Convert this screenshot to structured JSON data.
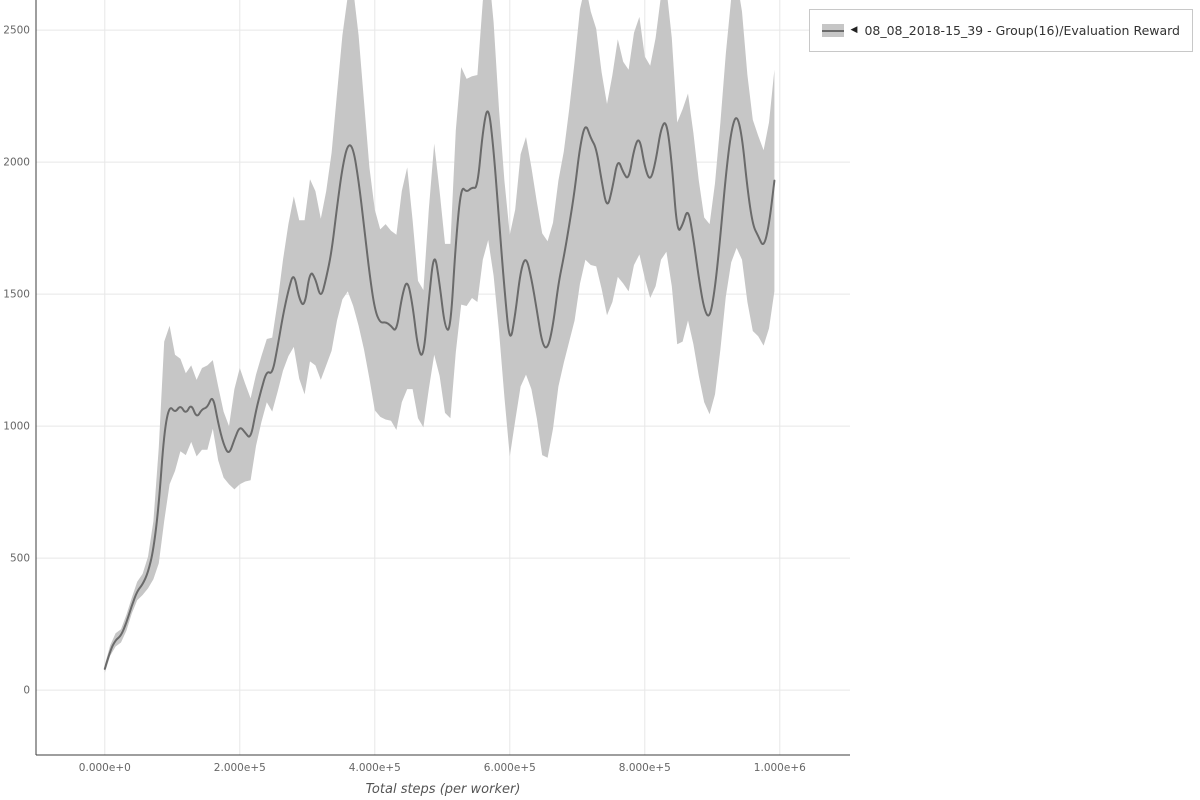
{
  "legend": {
    "toggle_icon": "◀",
    "label": "08_08_2018-15_39 - Group(16)/Evaluation Reward"
  },
  "chart_data": {
    "type": "line",
    "title": "",
    "xlabel": "Total steps (per worker)",
    "ylabel": "",
    "grid": true,
    "legend_position": "top-right",
    "xlim": [
      -102000,
      1104000
    ],
    "ylim": [
      -246,
      2614
    ],
    "x_ticks": {
      "values": [
        0,
        200000,
        400000,
        600000,
        800000,
        1000000
      ],
      "labels": [
        "0.000e+0",
        "2.000e+5",
        "4.000e+5",
        "6.000e+5",
        "8.000e+5",
        "1.000e+6"
      ]
    },
    "y_ticks": {
      "values": [
        0,
        500,
        1000,
        1500,
        2000,
        2500
      ],
      "labels": [
        "0",
        "500",
        "1000",
        "1500",
        "2000",
        "2500"
      ]
    },
    "colors": {
      "line": "#6a6a6a",
      "band": "#c6c6c6",
      "grid": "#e7e7e7",
      "axis": "#3c3c3c",
      "tick_text": "#666666",
      "title_text": "#555555"
    },
    "series": [
      {
        "name": "08_08_2018-15_39 - Group(16)/Evaluation Reward",
        "band_meaning": "mean ± spread (shaded region around line)",
        "x_start": 0,
        "x_step": 8000,
        "mean": [
          80,
          150,
          190,
          205,
          255,
          320,
          375,
          400,
          445,
          530,
          700,
          980,
          1080,
          1050,
          1080,
          1045,
          1085,
          1030,
          1065,
          1070,
          1120,
          1010,
          930,
          890,
          950,
          1000,
          975,
          950,
          1060,
          1140,
          1210,
          1195,
          1300,
          1420,
          1515,
          1585,
          1480,
          1450,
          1590,
          1560,
          1480,
          1560,
          1660,
          1830,
          1980,
          2070,
          2055,
          1930,
          1760,
          1580,
          1440,
          1390,
          1395,
          1380,
          1355,
          1490,
          1560,
          1460,
          1290,
          1255,
          1480,
          1670,
          1540,
          1370,
          1360,
          1700,
          1910,
          1885,
          1905,
          1900,
          2120,
          2225,
          2050,
          1780,
          1520,
          1305,
          1420,
          1590,
          1645,
          1560,
          1440,
          1310,
          1290,
          1380,
          1540,
          1640,
          1760,
          1890,
          2060,
          2150,
          2090,
          2055,
          1930,
          1820,
          1900,
          2015,
          1960,
          1930,
          2050,
          2100,
          1980,
          1925,
          2000,
          2130,
          2160,
          2000,
          1730,
          1760,
          1830,
          1710,
          1560,
          1440,
          1405,
          1520,
          1720,
          1950,
          2120,
          2185,
          2100,
          1900,
          1760,
          1720,
          1675,
          1760,
          1930
        ],
        "spread": [
          15,
          20,
          25,
          25,
          30,
          30,
          35,
          40,
          60,
          110,
          220,
          340,
          300,
          220,
          175,
          155,
          145,
          145,
          155,
          160,
          130,
          140,
          125,
          110,
          190,
          220,
          185,
          155,
          135,
          125,
          120,
          140,
          170,
          210,
          250,
          285,
          300,
          330,
          345,
          330,
          305,
          330,
          375,
          430,
          500,
          560,
          600,
          550,
          470,
          400,
          380,
          355,
          370,
          360,
          370,
          400,
          420,
          320,
          260,
          260,
          340,
          400,
          350,
          320,
          330,
          420,
          450,
          430,
          420,
          430,
          490,
          520,
          480,
          420,
          410,
          420,
          400,
          440,
          450,
          420,
          410,
          420,
          410,
          390,
          390,
          400,
          440,
          490,
          520,
          520,
          480,
          450,
          410,
          400,
          430,
          450,
          420,
          420,
          440,
          450,
          420,
          440,
          470,
          500,
          500,
          470,
          420,
          440,
          430,
          400,
          370,
          350,
          360,
          400,
          430,
          460,
          500,
          510,
          470,
          430,
          400,
          380,
          370,
          390,
          420
        ]
      }
    ]
  }
}
